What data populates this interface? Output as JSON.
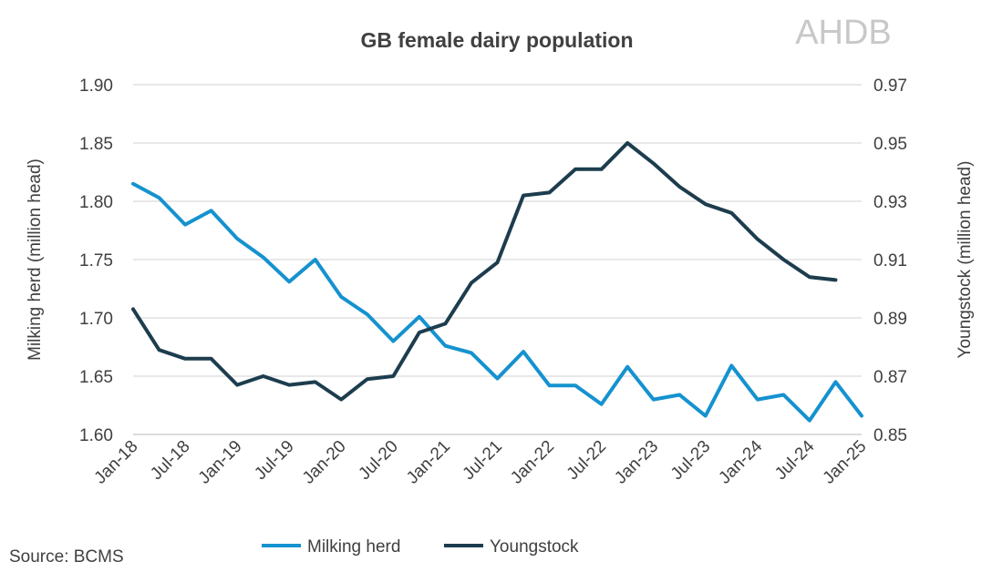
{
  "chart_data": {
    "type": "line",
    "title": "GB female dairy population",
    "logo_text": "AHDB",
    "source": "Source: BCMS",
    "x_tick_labels": [
      "Jan-18",
      "Jul-18",
      "Jan-19",
      "Jul-19",
      "Jan-20",
      "Jul-20",
      "Jan-21",
      "Jul-21",
      "Jan-22",
      "Jul-22",
      "Jan-23",
      "Jul-23",
      "Jan-24",
      "Jul-24",
      "Jan-25"
    ],
    "x_start": "Jan-18",
    "x_frequency": "quarterly",
    "ylabel_left": "Milking herd (million head)",
    "ylabel_right": "Youngstock (million head)",
    "ylim_left": [
      1.6,
      1.9
    ],
    "yticks_left": [
      "1.60",
      "1.65",
      "1.70",
      "1.75",
      "1.80",
      "1.85",
      "1.90"
    ],
    "ylim_right": [
      0.85,
      0.97
    ],
    "yticks_right": [
      "0.85",
      "0.87",
      "0.89",
      "0.91",
      "0.93",
      "0.95",
      "0.97"
    ],
    "grid": true,
    "legend_position": "bottom",
    "series": [
      {
        "name": "Milking herd",
        "axis": "left",
        "color": "#1592cf",
        "values": [
          1.815,
          1.803,
          1.78,
          1.792,
          1.768,
          1.752,
          1.731,
          1.75,
          1.718,
          1.703,
          1.68,
          1.701,
          1.676,
          1.67,
          1.648,
          1.671,
          1.642,
          1.642,
          1.626,
          1.658,
          1.63,
          1.634,
          1.616,
          1.659,
          1.63,
          1.634,
          1.612,
          1.645,
          1.616
        ]
      },
      {
        "name": "Youngstock",
        "axis": "right",
        "color": "#1d3d4e",
        "values": [
          0.893,
          0.879,
          0.876,
          0.876,
          0.867,
          0.87,
          0.867,
          0.868,
          0.862,
          0.869,
          0.87,
          0.885,
          0.888,
          0.902,
          0.909,
          0.932,
          0.933,
          0.941,
          0.941,
          0.95,
          0.943,
          0.935,
          0.929,
          0.926,
          0.917,
          0.91,
          0.904,
          0.903
        ]
      }
    ]
  }
}
